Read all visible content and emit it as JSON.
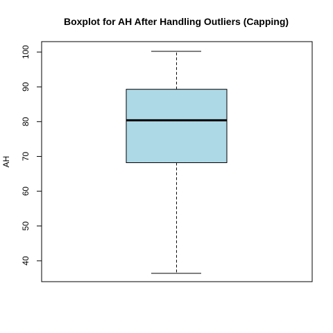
{
  "chart_data": {
    "type": "boxplot",
    "title": "Boxplot for AH After Handling Outliers (Capping)",
    "xlabel": "",
    "ylabel": "AH",
    "ylim": [
      34,
      103
    ],
    "y_ticks": [
      40,
      50,
      60,
      70,
      80,
      90,
      100
    ],
    "box": {
      "whisker_low": 36.4,
      "q1": 68.2,
      "median": 80.4,
      "q3": 89.3,
      "whisker_high": 100.2
    },
    "box_fill": "#add8e6",
    "line_color": "#000000",
    "grid": false,
    "legend": "none"
  }
}
